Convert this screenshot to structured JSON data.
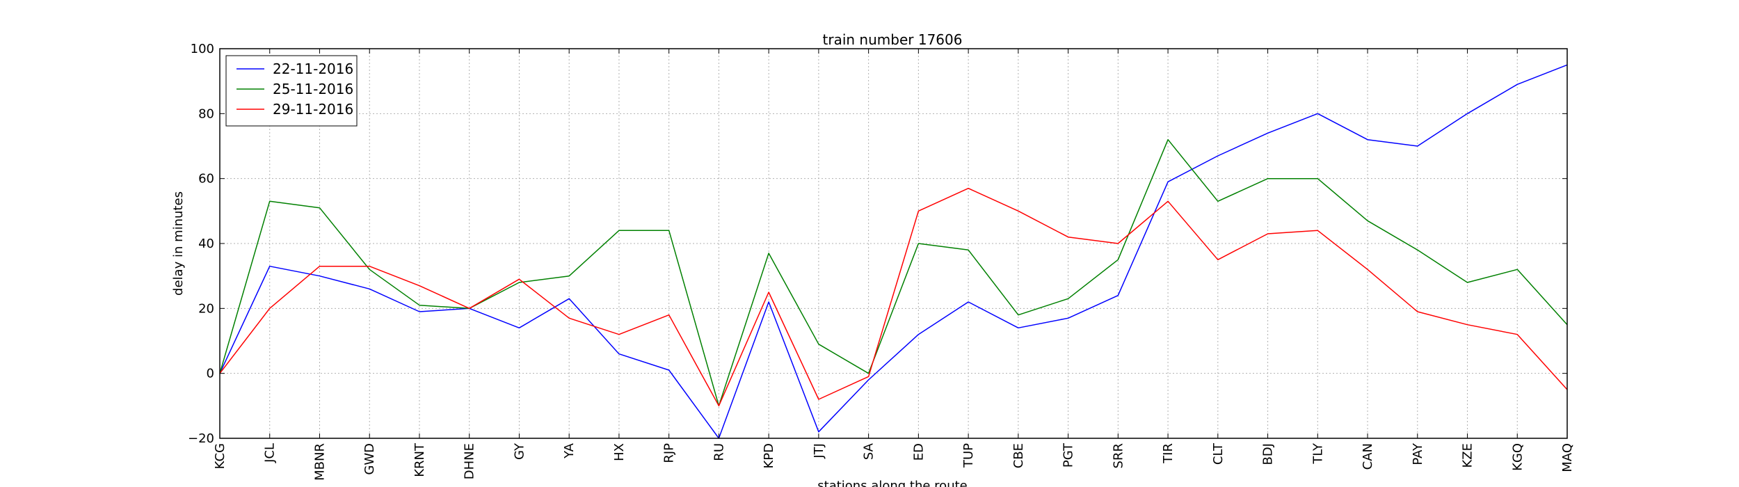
{
  "chart_data": {
    "type": "line",
    "title": "train number 17606",
    "xlabel": "stations along the route",
    "ylabel": "delay in minutes",
    "ylim": [
      -20,
      100
    ],
    "yticks": [
      -20,
      0,
      20,
      40,
      60,
      80,
      100
    ],
    "grid": true,
    "legend_position": "top-left",
    "categories": [
      "KCG",
      "JCL",
      "MBNR",
      "GWD",
      "KRNT",
      "DHNE",
      "GY",
      "YA",
      "HX",
      "RJP",
      "RU",
      "KPD",
      "JTJ",
      "SA",
      "ED",
      "TUP",
      "CBE",
      "PGT",
      "SRR",
      "TIR",
      "CLT",
      "BDJ",
      "TLY",
      "CAN",
      "PAY",
      "KZE",
      "KGQ",
      "MAQ"
    ],
    "series": [
      {
        "name": "22-11-2016",
        "color": "#0000ff",
        "values": [
          0,
          33,
          30,
          26,
          19,
          20,
          14,
          23,
          6,
          1,
          -20,
          22,
          -18,
          -2,
          12,
          22,
          14,
          17,
          24,
          59,
          67,
          74,
          80,
          72,
          70,
          80,
          89,
          95
        ]
      },
      {
        "name": "25-11-2016",
        "color": "#008000",
        "values": [
          0,
          53,
          51,
          32,
          21,
          20,
          28,
          30,
          44,
          44,
          -10,
          37,
          9,
          0,
          40,
          38,
          18,
          23,
          35,
          72,
          53,
          60,
          60,
          47,
          38,
          28,
          32,
          15
        ]
      },
      {
        "name": "29-11-2016",
        "color": "#ff0000",
        "values": [
          0,
          20,
          33,
          33,
          27,
          20,
          29,
          17,
          12,
          18,
          -10,
          25,
          -8,
          -1,
          50,
          57,
          50,
          42,
          40,
          53,
          35,
          43,
          44,
          32,
          19,
          15,
          12,
          -5
        ]
      }
    ]
  }
}
